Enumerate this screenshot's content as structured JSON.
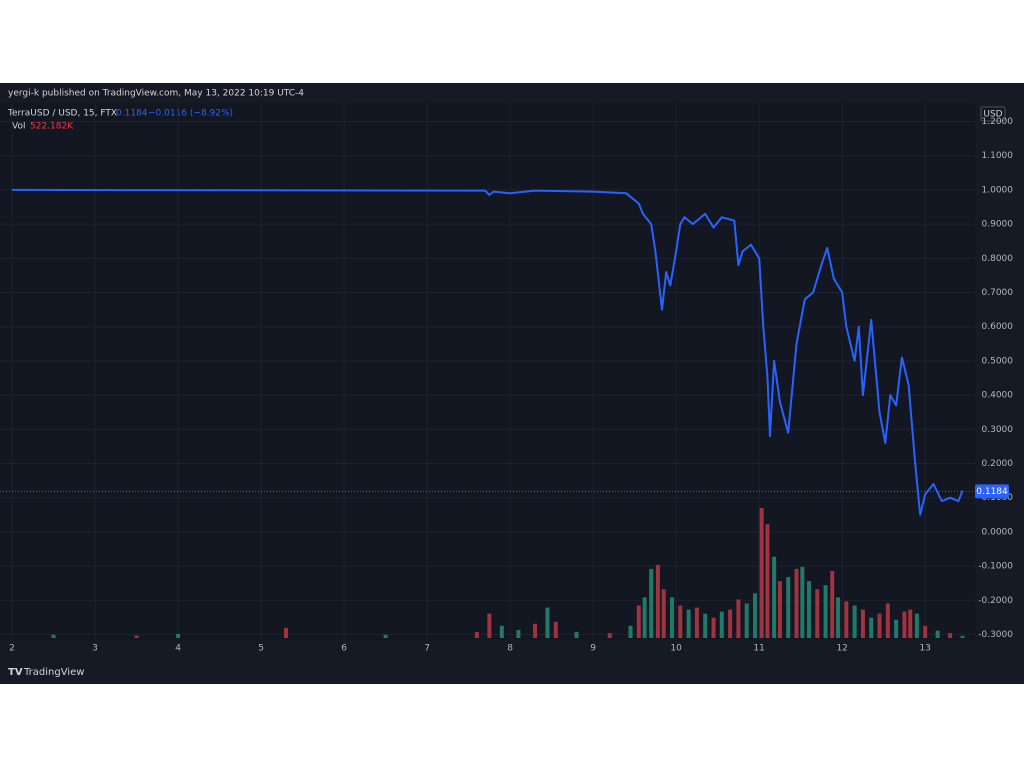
{
  "chart_data": {
    "type": "line",
    "title": "yergi-k published on TradingView.com, May 13, 2022 10:19 UTC-4",
    "currency": "USD",
    "brand": "TradingView",
    "series": [
      {
        "name": "TerraUSD / USD, 15, FTX",
        "color": "#2962ff",
        "x": [
          2,
          7.7,
          7.75,
          7.8,
          8.0,
          8.3,
          9.0,
          9.4,
          9.55,
          9.6,
          9.7,
          9.75,
          9.83,
          9.88,
          9.93,
          10.0,
          10.05,
          10.1,
          10.2,
          10.35,
          10.45,
          10.55,
          10.7,
          10.75,
          10.8,
          10.9,
          11.0,
          11.05,
          11.1,
          11.13,
          11.18,
          11.25,
          11.35,
          11.45,
          11.55,
          11.65,
          11.75,
          11.82,
          11.9,
          12.0,
          12.05,
          12.15,
          12.2,
          12.25,
          12.35,
          12.45,
          12.52,
          12.58,
          12.65,
          12.72,
          12.8,
          12.88,
          12.94,
          13.0,
          13.1,
          13.2,
          13.3,
          13.4,
          13.45
        ],
        "values": [
          1.0,
          0.998,
          0.985,
          0.995,
          0.99,
          0.998,
          0.995,
          0.99,
          0.96,
          0.93,
          0.9,
          0.82,
          0.65,
          0.76,
          0.72,
          0.82,
          0.9,
          0.92,
          0.9,
          0.93,
          0.89,
          0.92,
          0.91,
          0.78,
          0.82,
          0.84,
          0.8,
          0.6,
          0.45,
          0.28,
          0.5,
          0.38,
          0.29,
          0.55,
          0.68,
          0.7,
          0.78,
          0.83,
          0.74,
          0.7,
          0.6,
          0.5,
          0.6,
          0.4,
          0.62,
          0.35,
          0.26,
          0.4,
          0.37,
          0.51,
          0.43,
          0.2,
          0.05,
          0.11,
          0.14,
          0.09,
          0.1,
          0.09,
          0.12
        ]
      }
    ],
    "last_price": 0.1184,
    "change_label": "−0.0116 (−8.92%)",
    "volume": {
      "name": "Vol",
      "label": "522.182K",
      "up_color": "#1f7a6a",
      "down_color": "#a0333f",
      "x": [
        2.5,
        3.5,
        4.0,
        5.3,
        6.5,
        7.6,
        7.75,
        7.9,
        8.1,
        8.3,
        8.45,
        8.55,
        8.8,
        9.2,
        9.45,
        9.55,
        9.62,
        9.7,
        9.78,
        9.85,
        9.95,
        10.05,
        10.15,
        10.25,
        10.35,
        10.45,
        10.55,
        10.65,
        10.75,
        10.85,
        10.95,
        11.03,
        11.1,
        11.18,
        11.25,
        11.35,
        11.45,
        11.52,
        11.6,
        11.7,
        11.8,
        11.88,
        11.95,
        12.05,
        12.15,
        12.25,
        12.35,
        12.45,
        12.55,
        12.65,
        12.75,
        12.82,
        12.9,
        13.0,
        13.15,
        13.3,
        13.45
      ],
      "values": [
        800000,
        600000,
        1000000,
        2500000,
        800000,
        1500000,
        6000000,
        3000000,
        2000000,
        3500000,
        7500000,
        4000000,
        1500000,
        1200000,
        3000000,
        8000000,
        10000000,
        17000000,
        18000000,
        12000000,
        10000000,
        8000000,
        7000000,
        7500000,
        6000000,
        5000000,
        6500000,
        7000000,
        9500000,
        8500000,
        11000000,
        32000000,
        28000000,
        20000000,
        14000000,
        15000000,
        17000000,
        17500000,
        14000000,
        12000000,
        13000000,
        16500000,
        10000000,
        9000000,
        8000000,
        7000000,
        5000000,
        6000000,
        8500000,
        4500000,
        6500000,
        7000000,
        6000000,
        3000000,
        1800000,
        1200000,
        522182
      ],
      "up": [
        true,
        false,
        true,
        false,
        true,
        false,
        false,
        true,
        true,
        false,
        true,
        false,
        true,
        false,
        true,
        false,
        true,
        true,
        false,
        false,
        true,
        false,
        true,
        false,
        true,
        false,
        true,
        false,
        false,
        true,
        true,
        false,
        false,
        true,
        false,
        true,
        false,
        true,
        true,
        false,
        true,
        false,
        true,
        false,
        true,
        false,
        true,
        false,
        false,
        true,
        false,
        false,
        true,
        false,
        true,
        false,
        true
      ]
    },
    "xlim": [
      1.855,
      13.6
    ],
    "xticks": [
      2,
      3,
      4,
      5,
      6,
      7,
      8,
      9,
      10,
      11,
      12,
      13
    ],
    "ylim": [
      -0.316,
      1.254
    ],
    "yticks": [
      {
        "value": 1.2,
        "label": "1.2000"
      },
      {
        "value": 1.1,
        "label": "1.1000"
      },
      {
        "value": 1.0,
        "label": "1.0000"
      },
      {
        "value": 0.9,
        "label": "0.9000"
      },
      {
        "value": 0.8,
        "label": "0.8000"
      },
      {
        "value": 0.7,
        "label": "0.7000"
      },
      {
        "value": 0.6,
        "label": "0.6000"
      },
      {
        "value": 0.5,
        "label": "0.5000"
      },
      {
        "value": 0.4,
        "label": "0.4000"
      },
      {
        "value": 0.3,
        "label": "0.3000"
      },
      {
        "value": 0.2,
        "label": "0.2000"
      },
      {
        "value": 0.1,
        "label": "0.1000"
      },
      {
        "value": 0,
        "label": "0.0000"
      },
      {
        "value": -0.1,
        "label": "-0.1000"
      },
      {
        "value": -0.2,
        "label": "-0.2000"
      },
      {
        "value": -0.3,
        "label": "-0.3000"
      }
    ],
    "grid": true
  }
}
